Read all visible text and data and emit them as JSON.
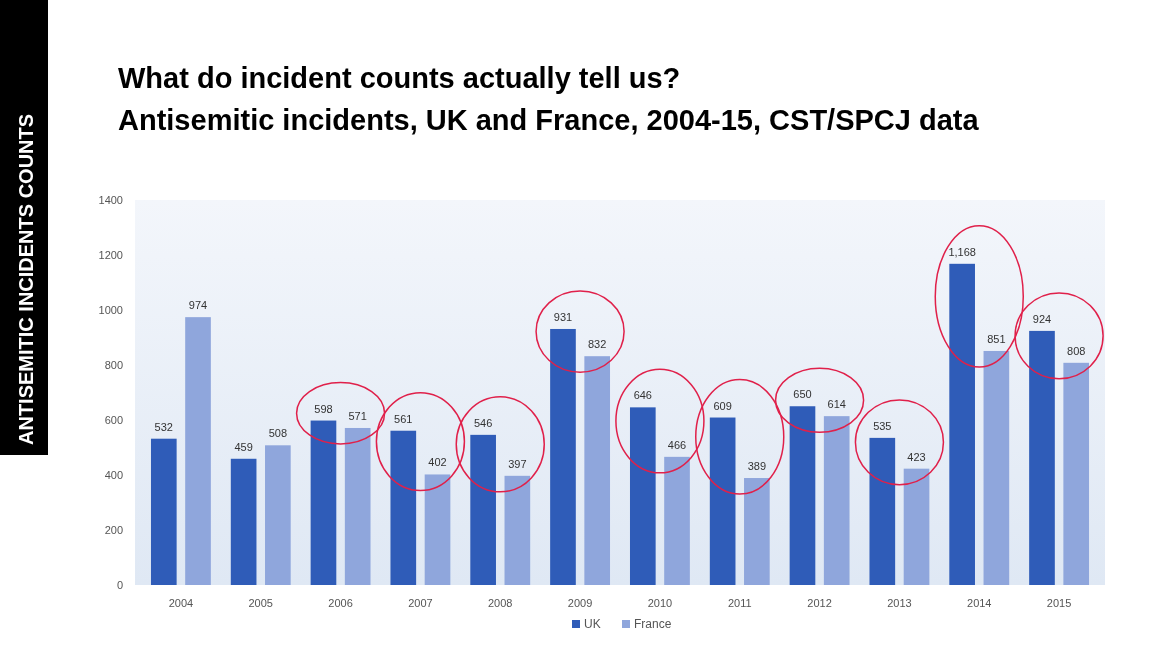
{
  "chart_data": {
    "type": "bar",
    "title": "What do incident counts actually tell us?",
    "subtitle": "Antisemitic incidents, UK and France, 2004-15, CST/SPCJ data",
    "annotations": [
      "ANTISEMITIC INCIDENTS COUNTS"
    ],
    "categories": [
      "2004",
      "2005",
      "2006",
      "2007",
      "2008",
      "2009",
      "2010",
      "2011",
      "2012",
      "2013",
      "2014",
      "2015"
    ],
    "series": [
      {
        "name": "UK",
        "color": "#2f5cb8",
        "values": [
          532,
          459,
          598,
          561,
          546,
          931,
          646,
          609,
          650,
          535,
          1168,
          924
        ],
        "value_labels": [
          "532",
          "459",
          "598",
          "561",
          "546",
          "931",
          "646",
          "609",
          "650",
          "535",
          "1,168",
          "924"
        ]
      },
      {
        "name": "France",
        "color": "#8fa6dc",
        "values": [
          974,
          508,
          571,
          402,
          397,
          832,
          466,
          389,
          614,
          423,
          851,
          808
        ],
        "value_labels": [
          "974",
          "508",
          "571",
          "402",
          "397",
          "832",
          "466",
          "389",
          "614",
          "423",
          "851",
          "808"
        ]
      }
    ],
    "ylim": [
      0,
      1400
    ],
    "yticks": [
      0,
      200,
      400,
      600,
      800,
      1000,
      1200,
      1400
    ],
    "grid": false,
    "legend": "bottom"
  }
}
